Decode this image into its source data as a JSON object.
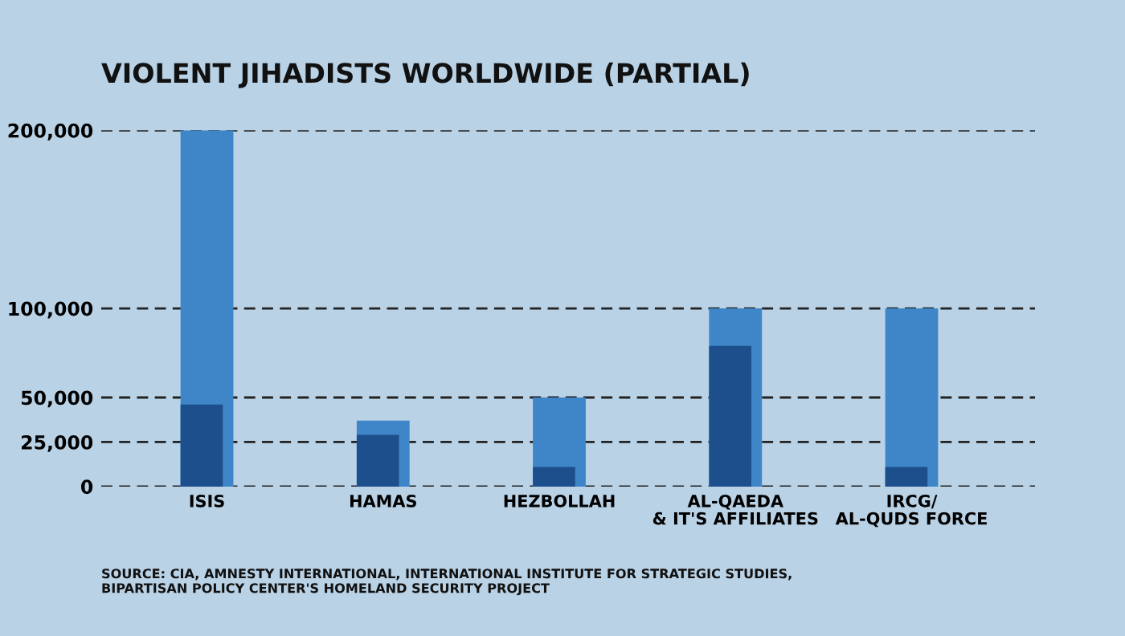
{
  "chart_data": {
    "type": "bar",
    "title": "VIOLENT JIHADISTS WORLDWIDE (PARTIAL)",
    "categories": [
      "ISIS",
      "HAMAS",
      "HEZBOLLAH",
      "AL-QAEDA\n& IT'S AFFILIATES",
      "IRCG/\nAL-QUDS FORCE"
    ],
    "series": [
      {
        "color": "#3f86c8",
        "values": [
          200000,
          37000,
          50000,
          100000,
          100000
        ]
      },
      {
        "color": "#1d4f8c",
        "values": [
          46000,
          29000,
          11000,
          79000,
          11000
        ]
      }
    ],
    "ylim": [
      0,
      200000
    ],
    "yticks": [
      {
        "value": 0,
        "label": "0"
      },
      {
        "value": 25000,
        "label": "25,000"
      },
      {
        "value": 50000,
        "label": "50,000"
      },
      {
        "value": 100000,
        "label": "100,000"
      },
      {
        "value": 200000,
        "label": "200,000"
      }
    ],
    "grid": "y",
    "annotations": [
      "SOURCE: CIA, AMNESTY INTERNATIONAL, INTERNATIONAL INSTITUTE FOR STRATEGIC STUDIES,\nBIPARTISAN POLICY CENTER'S HOMELAND SECURITY PROJECT"
    ]
  }
}
